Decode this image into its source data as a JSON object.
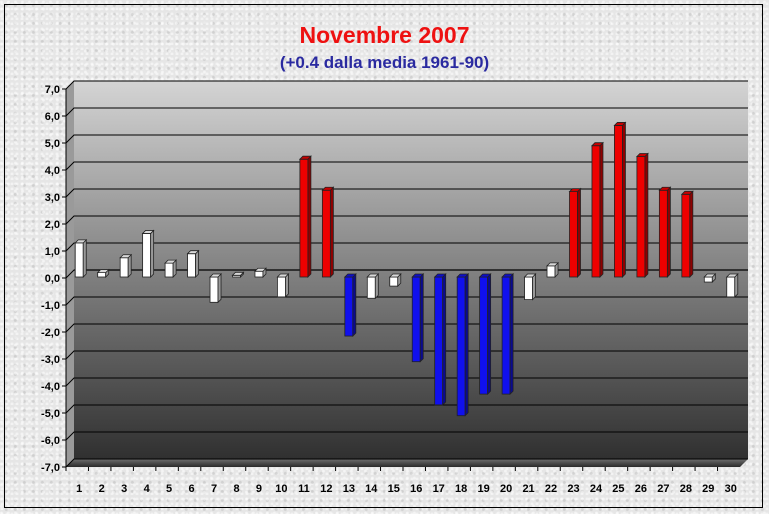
{
  "chart_data": {
    "type": "bar",
    "title": "Novembre 2007",
    "subtitle": "(+0.4 dalla media 1961-90)",
    "xlabel": "",
    "ylabel": "",
    "ylim": [
      -7.0,
      7.0
    ],
    "y_ticks": [
      "7,0",
      "6,0",
      "5,0",
      "4,0",
      "3,0",
      "2,0",
      "1,0",
      "0,0",
      "-1,0",
      "-2,0",
      "-3,0",
      "-4,0",
      "-5,0",
      "-6,0",
      "-7,0"
    ],
    "grid": true,
    "legend": "none",
    "categories": [
      "1",
      "2",
      "3",
      "4",
      "5",
      "6",
      "7",
      "8",
      "9",
      "10",
      "11",
      "12",
      "13",
      "14",
      "15",
      "16",
      "17",
      "18",
      "19",
      "20",
      "21",
      "22",
      "23",
      "24",
      "25",
      "26",
      "27",
      "28",
      "29",
      "30"
    ],
    "values": [
      1.3,
      0.2,
      0.75,
      1.65,
      0.55,
      0.9,
      -0.9,
      0.1,
      0.25,
      -0.7,
      4.4,
      3.25,
      -2.15,
      -0.75,
      -0.3,
      -3.1,
      -4.7,
      -5.1,
      -4.3,
      -4.3,
      -0.8,
      0.45,
      3.2,
      4.9,
      5.65,
      4.5,
      3.25,
      3.1,
      -0.15,
      -0.7
    ],
    "bar_colors": [
      "#ffffff",
      "#ffffff",
      "#ffffff",
      "#ffffff",
      "#ffffff",
      "#ffffff",
      "#ffffff",
      "#ffffff",
      "#ffffff",
      "#ffffff",
      "#ee0000",
      "#ee0000",
      "#1010ee",
      "#ffffff",
      "#ffffff",
      "#1010ee",
      "#1010ee",
      "#1010ee",
      "#1010ee",
      "#1010ee",
      "#ffffff",
      "#ffffff",
      "#ee0000",
      "#ee0000",
      "#ee0000",
      "#ee0000",
      "#ee0000",
      "#ee0000",
      "#ffffff",
      "#ffffff"
    ]
  },
  "colors": {
    "title": "#ee1111",
    "subtitle": "#2a2aa0",
    "warm_anomaly": "#ee0000",
    "cold_anomaly": "#1010ee",
    "normal": "#ffffff"
  }
}
